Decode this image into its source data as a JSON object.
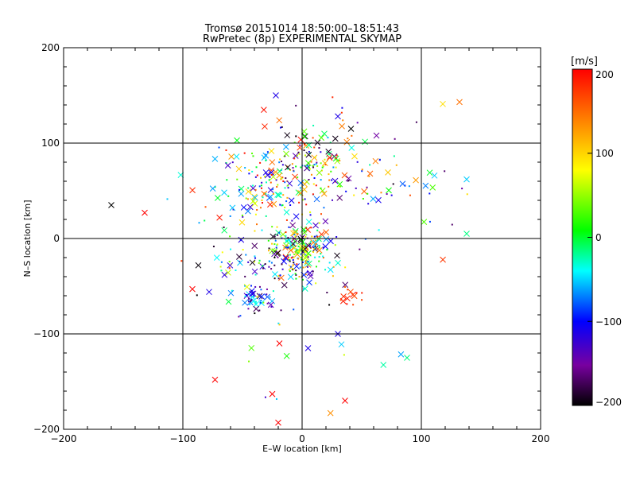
{
  "chart_data": {
    "type": "scatter",
    "title": "Tromsø 20151014 18:50:00–18:51:43",
    "subtitle": "RwPretec (8p) EXPERIMENTAL SKYMAP",
    "xlabel": "E–W location [km]",
    "ylabel": "N–S location [km]",
    "xlim": [
      -200,
      200
    ],
    "ylim": [
      -200,
      200
    ],
    "x_ticks": [
      -200,
      -100,
      0,
      100,
      200
    ],
    "y_ticks": [
      -200,
      -100,
      0,
      100,
      200
    ],
    "x_tick_labels": [
      "−200",
      "−100",
      "0",
      "100",
      "200"
    ],
    "y_tick_labels": [
      "−200",
      "−100",
      "0",
      "100",
      "200"
    ],
    "grid": true,
    "colorbar": {
      "unit_label": "[m/s]",
      "range": [
        -200,
        200
      ],
      "ticks": [
        200,
        100,
        0,
        -100,
        -200
      ],
      "tick_labels": [
        "200",
        "100",
        "0",
        "−100",
        "−200"
      ],
      "colormap": [
        "#000000",
        "#7800a0",
        "#0000ff",
        "#00ffff",
        "#00ff00",
        "#ffff00",
        "#ff8000",
        "#ff0000"
      ]
    },
    "clusters": [
      {
        "cx": 0,
        "cy": -12,
        "sx": 12,
        "sy": 14,
        "n": 190,
        "vmin": -200,
        "vmax": 200
      },
      {
        "cx": -25,
        "cy": 55,
        "sx": 28,
        "sy": 18,
        "n": 150,
        "vmin": -120,
        "vmax": 200
      },
      {
        "cx": 5,
        "cy": 85,
        "sx": 25,
        "sy": 20,
        "n": 110,
        "vmin": -200,
        "vmax": 200
      },
      {
        "cx": -35,
        "cy": -30,
        "sx": 20,
        "sy": 25,
        "n": 80,
        "vmin": -200,
        "vmax": 100
      },
      {
        "cx": -40,
        "cy": -68,
        "sx": 8,
        "sy": 7,
        "n": 35,
        "vmin": -200,
        "vmax": -20
      },
      {
        "cx": 42,
        "cy": -63,
        "sx": 4,
        "sy": 5,
        "n": 14,
        "vmin": 160,
        "vmax": 200
      },
      {
        "cx": 60,
        "cy": 55,
        "sx": 35,
        "sy": 20,
        "n": 45,
        "vmin": -200,
        "vmax": 200
      },
      {
        "cx": 0,
        "cy": 0,
        "sx": 60,
        "sy": 70,
        "n": 70,
        "vmin": -200,
        "vmax": 200
      }
    ],
    "highlight_points": [
      {
        "x": -160,
        "y": 35,
        "v": -200
      },
      {
        "x": -132,
        "y": 27,
        "v": 200
      },
      {
        "x": -92,
        "y": -53,
        "v": 200
      },
      {
        "x": -78,
        "y": -56,
        "v": -100
      },
      {
        "x": -22,
        "y": 150,
        "v": -100
      },
      {
        "x": 118,
        "y": 141,
        "v": 100
      },
      {
        "x": 132,
        "y": 143,
        "v": 150
      },
      {
        "x": 138,
        "y": 62,
        "v": -40
      },
      {
        "x": 138,
        "y": 5,
        "v": 0
      },
      {
        "x": 88,
        "y": -125,
        "v": 0
      },
      {
        "x": -73,
        "y": -148,
        "v": 200
      },
      {
        "x": -25,
        "y": -163,
        "v": 200
      },
      {
        "x": -20,
        "y": -193,
        "v": 200
      },
      {
        "x": 36,
        "y": -170,
        "v": 200
      },
      {
        "x": 5,
        "y": -115,
        "v": -100
      },
      {
        "x": 33,
        "y": -111,
        "v": -40
      },
      {
        "x": 30,
        "y": -100,
        "v": -100
      },
      {
        "x": -19,
        "y": -110,
        "v": 200
      },
      {
        "x": 107,
        "y": 69,
        "v": 20
      },
      {
        "x": 111,
        "y": 66,
        "v": -40
      },
      {
        "x": 30,
        "y": 128,
        "v": -100
      },
      {
        "x": 41,
        "y": 115,
        "v": -200
      }
    ]
  }
}
